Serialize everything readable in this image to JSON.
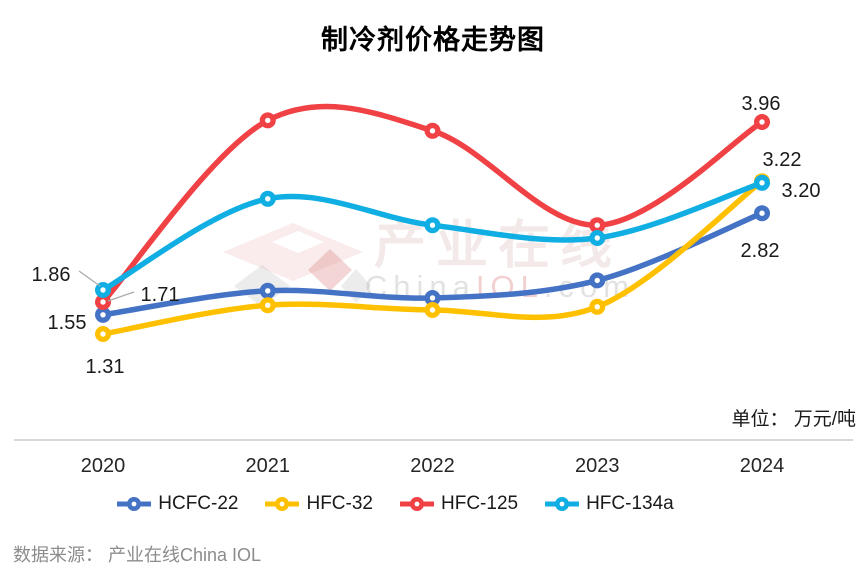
{
  "labels": {
    "unit": "单位： 万元/吨",
    "source": "数据来源： 产业在线China IOL"
  },
  "watermark": {
    "logo_icon": "diamond-logo",
    "cn": "产业在线",
    "en": "ChinaIOL.com"
  },
  "chart_data": {
    "type": "line",
    "title": "制冷剂价格走势图",
    "unit": "万元/吨",
    "x_labels": [
      "2020",
      "2021",
      "2022",
      "2023",
      "2024"
    ],
    "y_axis_visible": false,
    "grid": false,
    "smooth": true,
    "legend_position": "bottom",
    "series": [
      {
        "name": "HCFC-22",
        "color": "#4472C4",
        "values": [
          1.55,
          1.85,
          1.76,
          1.98,
          2.82
        ]
      },
      {
        "name": "HFC-32",
        "color": "#FFC000",
        "values": [
          1.31,
          1.67,
          1.61,
          1.65,
          3.22
        ]
      },
      {
        "name": "HFC-125",
        "color": "#F04145",
        "values": [
          1.71,
          3.98,
          3.85,
          2.67,
          3.96
        ]
      },
      {
        "name": "HFC-134a",
        "color": "#10AEE2",
        "values": [
          1.86,
          3.0,
          2.67,
          2.51,
          3.2
        ]
      }
    ],
    "point_labels": [
      {
        "series": "HFC-134a",
        "x": "2020",
        "text": "1.86"
      },
      {
        "series": "HFC-125",
        "x": "2020",
        "text": "1.71"
      },
      {
        "series": "HCFC-22",
        "x": "2020",
        "text": "1.55"
      },
      {
        "series": "HFC-32",
        "x": "2020",
        "text": "1.31"
      },
      {
        "series": "HFC-125",
        "x": "2024",
        "text": "3.96"
      },
      {
        "series": "HFC-32",
        "x": "2024",
        "text": "3.22"
      },
      {
        "series": "HFC-134a",
        "x": "2024",
        "text": "3.20"
      },
      {
        "series": "HCFC-22",
        "x": "2024",
        "text": "2.82"
      }
    ]
  }
}
